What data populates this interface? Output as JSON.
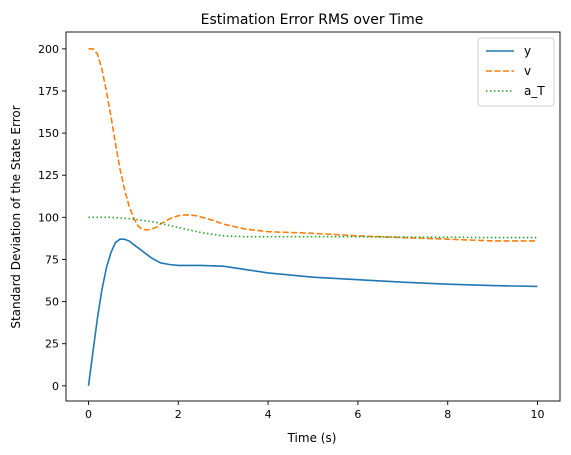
{
  "chart_data": {
    "type": "line",
    "title": "Estimation Error RMS over Time",
    "xlabel": "Time (s)",
    "ylabel": "Standard Deviation of the State Error",
    "xlim": [
      -0.5,
      10.5
    ],
    "ylim": [
      -9,
      210
    ],
    "xticks": [
      0,
      2,
      4,
      6,
      8,
      10
    ],
    "yticks": [
      0,
      25,
      50,
      75,
      100,
      125,
      150,
      175,
      200
    ],
    "grid": false,
    "legend_position": "top-right",
    "series": [
      {
        "name": "y",
        "color": "#1f77b4",
        "style": "solid",
        "x": [
          0,
          0.1,
          0.2,
          0.3,
          0.4,
          0.5,
          0.6,
          0.7,
          0.8,
          0.9,
          1.0,
          1.2,
          1.4,
          1.6,
          1.8,
          2.0,
          2.5,
          3.0,
          3.5,
          4.0,
          5.0,
          6.0,
          7.0,
          8.0,
          9.0,
          10.0
        ],
        "values": [
          0,
          20,
          40,
          57,
          70,
          79,
          85,
          87,
          87,
          86,
          84,
          80,
          76,
          73,
          72,
          71.5,
          71.5,
          71,
          69,
          67,
          64.5,
          63,
          61.5,
          60.3,
          59.5,
          59
        ]
      },
      {
        "name": "v",
        "color": "#ff7f0e",
        "style": "dashed",
        "x": [
          0,
          0.1,
          0.2,
          0.3,
          0.4,
          0.5,
          0.6,
          0.7,
          0.8,
          0.9,
          1.0,
          1.1,
          1.2,
          1.3,
          1.4,
          1.5,
          1.6,
          1.8,
          2.0,
          2.2,
          2.4,
          2.6,
          2.8,
          3.0,
          3.5,
          4.0,
          5.0,
          6.0,
          7.0,
          8.0,
          9.0,
          10.0
        ],
        "values": [
          200,
          200,
          197,
          188,
          175,
          160,
          144,
          129,
          117,
          107,
          100,
          95,
          93,
          92.5,
          93,
          94,
          96,
          99,
          101,
          101.5,
          101,
          99.5,
          98,
          96,
          93,
          91.5,
          90.5,
          89,
          88,
          87,
          86,
          86
        ]
      },
      {
        "name": "a_T",
        "color": "#2ca02c",
        "style": "dotted",
        "x": [
          0,
          0.5,
          1.0,
          1.5,
          2.0,
          2.5,
          3.0,
          3.5,
          4.0,
          5.0,
          6.0,
          7.0,
          8.0,
          9.0,
          10.0
        ],
        "values": [
          100,
          100,
          99,
          97,
          94,
          91,
          89,
          88.5,
          88.5,
          88.5,
          88.5,
          88.3,
          88.2,
          88,
          88
        ]
      }
    ]
  }
}
